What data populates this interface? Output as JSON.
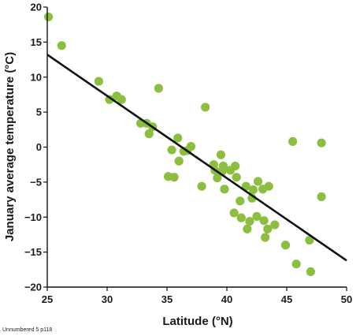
{
  "chart_data": {
    "type": "scatter",
    "xlabel": "Latitude (°N)",
    "ylabel": "January average temperature (°C)",
    "xlim": [
      25,
      50
    ],
    "ylim": [
      -20,
      20
    ],
    "x_ticks": [
      25,
      30,
      35,
      40,
      45,
      50
    ],
    "y_ticks": [
      20,
      15,
      10,
      5,
      0,
      -5,
      -10,
      -15,
      -20
    ],
    "grid": false,
    "point_color": "#8cbf3f",
    "line_color": "#111111",
    "trendline": {
      "x": [
        25,
        50
      ],
      "y": [
        13.2,
        -16.2
      ]
    },
    "points": [
      {
        "x": 25.1,
        "y": 18.6
      },
      {
        "x": 26.2,
        "y": 14.5
      },
      {
        "x": 29.3,
        "y": 9.4
      },
      {
        "x": 30.2,
        "y": 6.8
      },
      {
        "x": 30.8,
        "y": 7.3
      },
      {
        "x": 31.2,
        "y": 6.8
      },
      {
        "x": 32.8,
        "y": 3.4
      },
      {
        "x": 33.3,
        "y": 3.4
      },
      {
        "x": 33.5,
        "y": 1.9
      },
      {
        "x": 33.8,
        "y": 2.9
      },
      {
        "x": 34.3,
        "y": 8.4
      },
      {
        "x": 35.1,
        "y": -4.2
      },
      {
        "x": 35.4,
        "y": -0.4
      },
      {
        "x": 35.6,
        "y": -4.3
      },
      {
        "x": 35.9,
        "y": 1.3
      },
      {
        "x": 36.0,
        "y": -2.0
      },
      {
        "x": 36.4,
        "y": -0.6
      },
      {
        "x": 36.7,
        "y": -0.5
      },
      {
        "x": 37.0,
        "y": 0.1
      },
      {
        "x": 37.9,
        "y": -5.6
      },
      {
        "x": 38.2,
        "y": 5.7
      },
      {
        "x": 38.9,
        "y": -2.5
      },
      {
        "x": 39.0,
        "y": -3.3
      },
      {
        "x": 39.2,
        "y": -4.4
      },
      {
        "x": 39.5,
        "y": -1.1
      },
      {
        "x": 39.6,
        "y": -3.5
      },
      {
        "x": 39.7,
        "y": -2.7
      },
      {
        "x": 39.8,
        "y": -6.0
      },
      {
        "x": 40.3,
        "y": -3.3
      },
      {
        "x": 40.6,
        "y": -9.4
      },
      {
        "x": 40.7,
        "y": -2.7
      },
      {
        "x": 40.8,
        "y": -4.3
      },
      {
        "x": 41.1,
        "y": -7.7
      },
      {
        "x": 41.2,
        "y": -10.1
      },
      {
        "x": 41.6,
        "y": -5.6
      },
      {
        "x": 41.7,
        "y": -11.7
      },
      {
        "x": 41.9,
        "y": -10.6
      },
      {
        "x": 42.1,
        "y": -7.3
      },
      {
        "x": 42.2,
        "y": -6.1
      },
      {
        "x": 42.5,
        "y": -9.9
      },
      {
        "x": 42.6,
        "y": -4.9
      },
      {
        "x": 43.0,
        "y": -6.0
      },
      {
        "x": 43.1,
        "y": -10.5
      },
      {
        "x": 43.2,
        "y": -12.9
      },
      {
        "x": 43.4,
        "y": -11.7
      },
      {
        "x": 43.5,
        "y": -5.6
      },
      {
        "x": 44.0,
        "y": -11.1
      },
      {
        "x": 44.9,
        "y": -14.0
      },
      {
        "x": 45.5,
        "y": 0.8
      },
      {
        "x": 45.8,
        "y": -16.7
      },
      {
        "x": 46.9,
        "y": -13.3
      },
      {
        "x": 47.0,
        "y": -17.8
      },
      {
        "x": 47.9,
        "y": 0.6
      },
      {
        "x": 47.9,
        "y": -7.1
      }
    ]
  },
  "footnote": "Unnumbered 5 p118"
}
